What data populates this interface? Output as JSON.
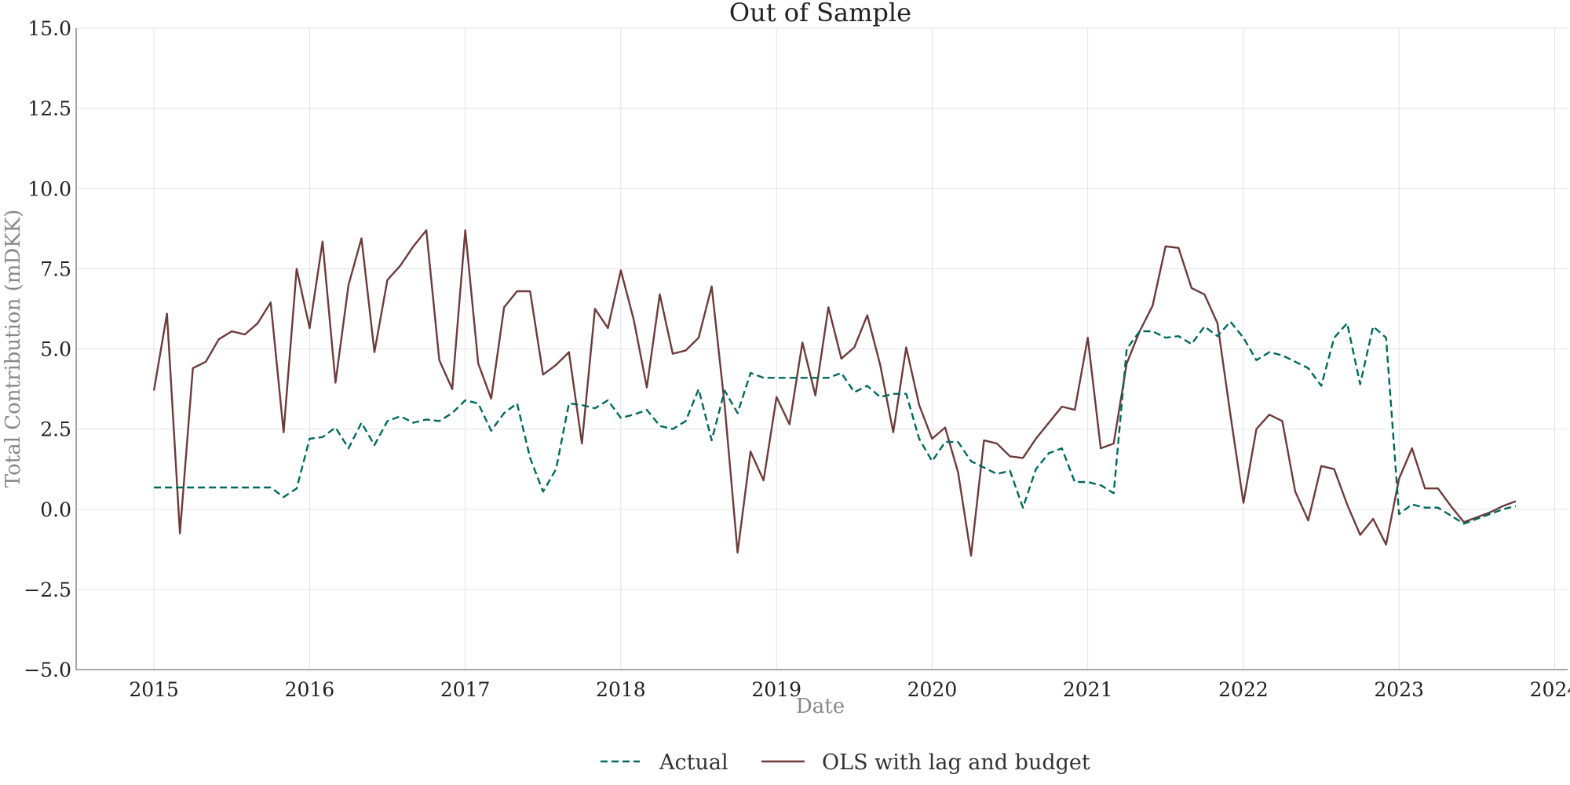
{
  "chart_data": {
    "type": "line",
    "title": "Out of Sample",
    "xlabel": "Date",
    "ylabel": "Total Contribution (mDKK)",
    "xlim": [
      "2014-07",
      "2024-02"
    ],
    "ylim": [
      -5,
      15
    ],
    "y_ticks": [
      -5,
      -2.5,
      0,
      2.5,
      5,
      7.5,
      10,
      12.5,
      15
    ],
    "y_tick_labels": [
      "−5.0",
      "−2.5",
      "0.0",
      "2.5",
      "5.0",
      "7.5",
      "10.0",
      "12.5",
      "15.0"
    ],
    "x_ticks": [
      "2015-01",
      "2016-01",
      "2017-01",
      "2018-01",
      "2019-01",
      "2020-01",
      "2021-01",
      "2022-01",
      "2023-01",
      "2024-01"
    ],
    "x_tick_labels": [
      "2015",
      "2016",
      "2017",
      "2018",
      "2019",
      "2020",
      "2021",
      "2022",
      "2023",
      "2024"
    ],
    "grid": true,
    "legend_position": "bottom-center",
    "x": [
      "2015-01",
      "2015-02",
      "2015-03",
      "2015-04",
      "2015-05",
      "2015-06",
      "2015-07",
      "2015-08",
      "2015-09",
      "2015-10",
      "2015-11",
      "2015-12",
      "2016-01",
      "2016-02",
      "2016-03",
      "2016-04",
      "2016-05",
      "2016-06",
      "2016-07",
      "2016-08",
      "2016-09",
      "2016-10",
      "2016-11",
      "2016-12",
      "2017-01",
      "2017-02",
      "2017-03",
      "2017-04",
      "2017-05",
      "2017-06",
      "2017-07",
      "2017-08",
      "2017-09",
      "2017-10",
      "2017-11",
      "2017-12",
      "2018-01",
      "2018-02",
      "2018-03",
      "2018-04",
      "2018-05",
      "2018-06",
      "2018-07",
      "2018-08",
      "2018-09",
      "2018-10",
      "2018-11",
      "2018-12",
      "2019-01",
      "2019-02",
      "2019-03",
      "2019-04",
      "2019-05",
      "2019-06",
      "2019-07",
      "2019-08",
      "2019-09",
      "2019-10",
      "2019-11",
      "2019-12",
      "2020-01",
      "2020-02",
      "2020-03",
      "2020-04",
      "2020-05",
      "2020-06",
      "2020-07",
      "2020-08",
      "2020-09",
      "2020-10",
      "2020-11",
      "2020-12",
      "2021-01",
      "2021-02",
      "2021-03",
      "2021-04",
      "2021-05",
      "2021-06",
      "2021-07",
      "2021-08",
      "2021-09",
      "2021-10",
      "2021-11",
      "2021-12",
      "2022-01",
      "2022-02",
      "2022-03",
      "2022-04",
      "2022-05",
      "2022-06",
      "2022-07",
      "2022-08",
      "2022-09",
      "2022-10",
      "2022-11",
      "2022-12",
      "2023-01",
      "2023-02",
      "2023-03",
      "2023-04",
      "2023-05",
      "2023-06",
      "2023-07",
      "2023-08",
      "2023-09",
      "2023-10"
    ],
    "series": [
      {
        "name": "Actual",
        "color": "#00695c",
        "dash": true,
        "values": [
          0.68,
          0.68,
          0.68,
          0.68,
          0.68,
          0.68,
          0.68,
          0.68,
          0.68,
          0.68,
          0.38,
          0.65,
          2.2,
          2.25,
          2.55,
          1.9,
          2.7,
          2.0,
          2.75,
          2.9,
          2.7,
          2.8,
          2.75,
          3.0,
          3.4,
          3.3,
          2.45,
          3.0,
          3.3,
          1.6,
          0.55,
          1.25,
          3.3,
          3.25,
          3.15,
          3.4,
          2.85,
          2.95,
          3.1,
          2.6,
          2.5,
          2.75,
          3.75,
          2.15,
          3.7,
          3.0,
          4.25,
          4.1,
          4.1,
          4.1,
          4.1,
          4.1,
          4.1,
          4.25,
          3.65,
          3.85,
          3.5,
          3.6,
          3.6,
          2.2,
          1.5,
          2.1,
          2.1,
          1.5,
          1.3,
          1.1,
          1.2,
          0.05,
          1.25,
          1.75,
          1.9,
          0.85,
          0.85,
          0.75,
          0.5,
          5.0,
          5.55,
          5.55,
          5.35,
          5.4,
          5.15,
          5.7,
          5.4,
          5.85,
          5.35,
          4.65,
          4.9,
          4.8,
          4.6,
          4.4,
          3.85,
          5.35,
          5.8,
          3.9,
          5.7,
          5.35,
          -0.15,
          0.15,
          0.05,
          0.05,
          -0.2,
          -0.45,
          -0.3,
          -0.15,
          0.0,
          0.1
        ]
      },
      {
        "name": "OLS with lag and budget",
        "color": "#6d3b3b",
        "dash": false,
        "values": [
          3.7,
          6.1,
          -0.75,
          4.4,
          4.6,
          5.3,
          5.55,
          5.45,
          5.8,
          6.45,
          2.4,
          7.5,
          5.65,
          8.35,
          3.95,
          7.0,
          8.45,
          4.9,
          7.15,
          7.6,
          8.2,
          8.7,
          4.65,
          3.75,
          8.7,
          4.55,
          3.45,
          6.3,
          6.8,
          6.8,
          4.2,
          4.5,
          4.9,
          2.05,
          6.25,
          5.65,
          7.45,
          5.9,
          3.8,
          6.7,
          4.85,
          4.95,
          5.35,
          6.95,
          3.25,
          -1.35,
          1.8,
          0.9,
          3.5,
          2.65,
          5.2,
          3.55,
          6.3,
          4.7,
          5.05,
          6.05,
          4.5,
          2.4,
          5.05,
          3.25,
          2.2,
          2.55,
          1.15,
          -1.45,
          2.15,
          2.05,
          1.65,
          1.6,
          2.2,
          2.7,
          3.2,
          3.1,
          5.35,
          1.9,
          2.05,
          4.55,
          5.55,
          6.35,
          8.2,
          8.15,
          6.9,
          6.7,
          5.8,
          2.95,
          0.2,
          2.5,
          2.95,
          2.75,
          0.55,
          -0.35,
          1.35,
          1.25,
          0.15,
          -0.8,
          -0.3,
          -1.1,
          0.95,
          1.9,
          0.65,
          0.65,
          0.1,
          -0.4,
          -0.25,
          -0.1,
          0.1,
          0.25
        ]
      }
    ]
  }
}
